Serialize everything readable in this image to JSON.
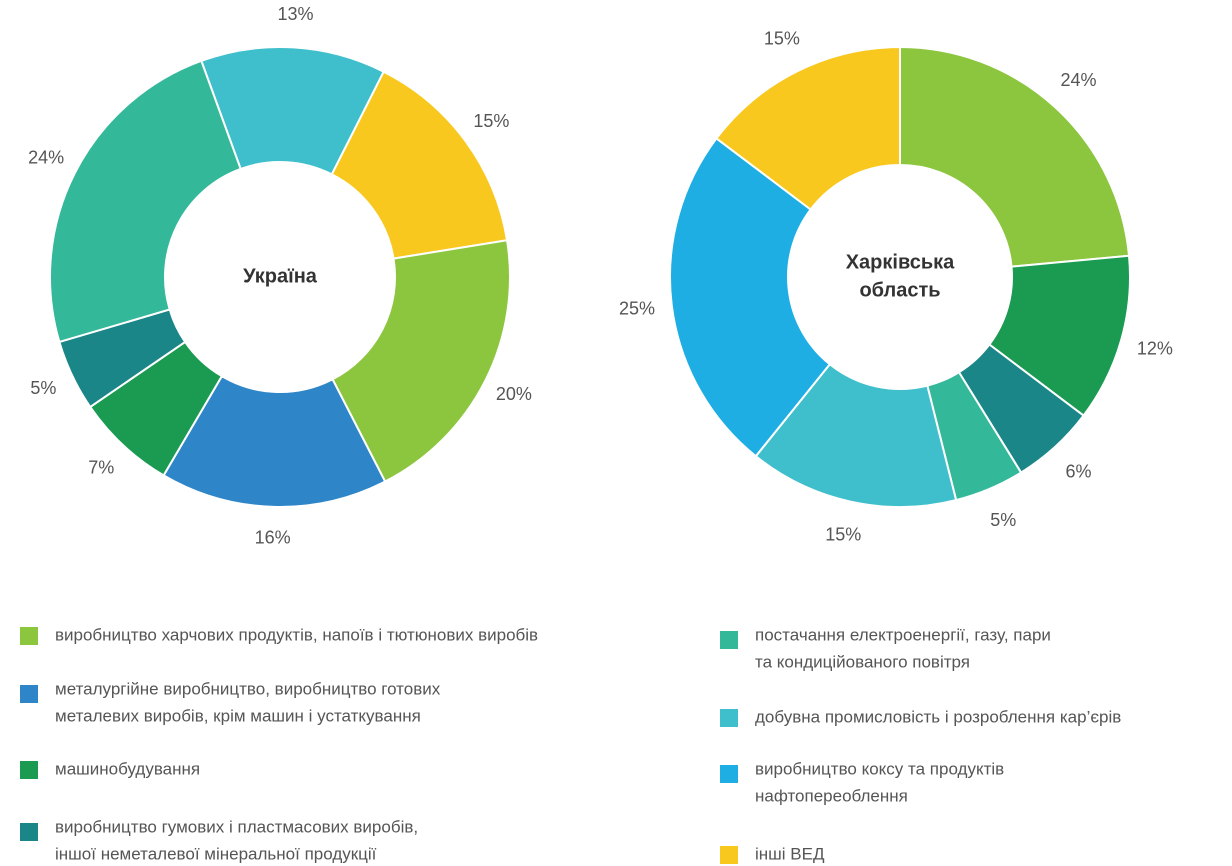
{
  "chart_data": [
    {
      "type": "pie",
      "center_label": [
        "Україна"
      ],
      "values": [
        13,
        15,
        20,
        16,
        7,
        5,
        24
      ],
      "value_labels": [
        "13%",
        "15%",
        "20%",
        "16%",
        "7%",
        "5%",
        "24%"
      ],
      "colors": [
        "#3fbfcb",
        "#f8c81f",
        "#8cc63f",
        "#2e86c8",
        "#1b9a52",
        "#1a8688",
        "#33b899"
      ]
    },
    {
      "type": "pie",
      "center_label": [
        "Харківська",
        "область"
      ],
      "values": [
        24,
        12,
        6,
        5,
        15,
        25,
        15
      ],
      "value_labels": [
        "24%",
        "12%",
        "6%",
        "5%",
        "15%",
        "25%",
        "15%"
      ],
      "colors": [
        "#8cc63f",
        "#1b9a52",
        "#1a8688",
        "#33b899",
        "#3fbfcb",
        "#1eaee4",
        "#f8c81f"
      ]
    }
  ],
  "legend": [
    {
      "label": [
        "виробництво харчових продуктів, напоїв і тютюнових виробів"
      ],
      "color": "#8cc63f"
    },
    {
      "label": [
        "металургійне виробництво, виробництво готових",
        "металевих виробів, крім машин і устаткування"
      ],
      "color": "#2e86c8"
    },
    {
      "label": [
        "машинобудування"
      ],
      "color": "#1b9a52"
    },
    {
      "label": [
        "виробництво гумових і пластмасових виробів,",
        "іншої неметалевої мінеральної продукції"
      ],
      "color": "#1a8688"
    },
    {
      "label": [
        "постачання електроенергії, газу, пари",
        "та кондиційованого повітря"
      ],
      "color": "#33b899"
    },
    {
      "label": [
        "добувна промисловість і розроблення кар’єрів"
      ],
      "color": "#3fbfcb"
    },
    {
      "label": [
        "виробництво коксу та продуктів",
        "нафтопереоблення"
      ],
      "color": "#1eaee4"
    },
    {
      "label": [
        "інші ВЕД"
      ],
      "color": "#f8c81f"
    }
  ]
}
